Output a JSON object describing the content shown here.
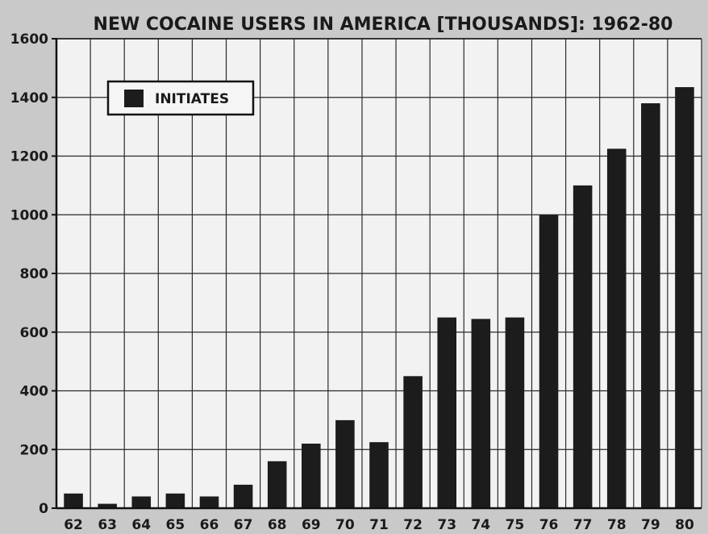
{
  "chart_data": {
    "type": "bar",
    "title": "NEW COCAINE USERS IN AMERICA [THOUSANDS]: 1962-80",
    "xlabel": "",
    "ylabel": "",
    "categories": [
      "62",
      "63",
      "64",
      "65",
      "66",
      "67",
      "68",
      "69",
      "70",
      "71",
      "72",
      "73",
      "74",
      "75",
      "76",
      "77",
      "78",
      "79",
      "80"
    ],
    "series": [
      {
        "name": "INITIATES",
        "values": [
          50,
          15,
          40,
          50,
          40,
          80,
          160,
          220,
          300,
          225,
          450,
          650,
          645,
          650,
          1000,
          1100,
          1225,
          1380,
          1435
        ]
      }
    ],
    "ylim": [
      0,
      1600
    ],
    "yticks": [
      "0",
      "200",
      "400",
      "600",
      "800",
      "1000",
      "1200",
      "1400",
      "1600"
    ],
    "grid": true,
    "legend_position": "top-left",
    "colors": {
      "bar": "#1c1c1c",
      "plot_bg": "#f2f2f2",
      "page_bg": "#c9c9c9",
      "grid": "#2a2a2a"
    }
  }
}
